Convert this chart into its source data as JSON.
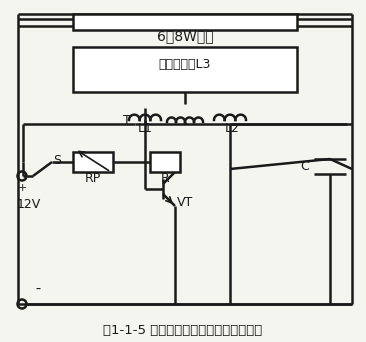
{
  "title": "图1-1-5 荧光灯使用直流电源的电气线路",
  "label_tube": "6～8W灯管",
  "label_transformer": "高频变压器L3",
  "label_T": "T",
  "label_L1": "L1",
  "label_L2": "L2",
  "label_RP": "RP",
  "label_R": "R",
  "label_C": "C",
  "label_S": "S",
  "label_VT": "VT",
  "label_12V": "12V",
  "label_plus": "+",
  "label_minus": "¯",
  "bg_color": "#f5f5f0",
  "line_color": "#1a1a1a",
  "figsize": [
    3.66,
    3.42
  ],
  "dpi": 100
}
